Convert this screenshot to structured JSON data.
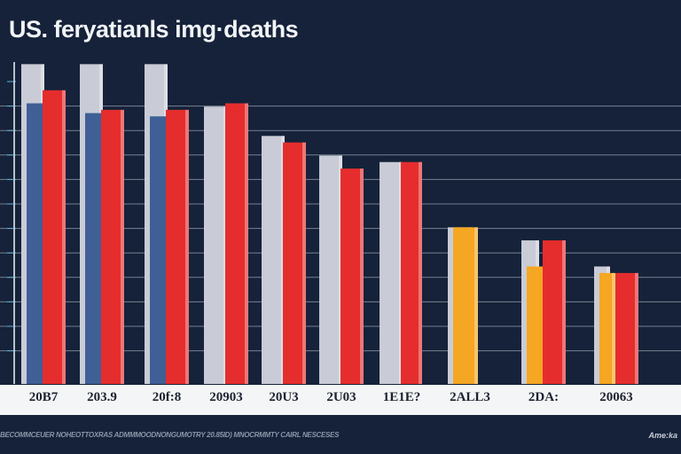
{
  "title": "US. feryatianls img·deaths",
  "caption": "BECOMMCEUER NOHEOTTOXRAS ADMMMOODNONGUMOTRY 20.85ID) MNOCRMMTY CAIRL NESCESES",
  "source": "Ame:ka",
  "colors": {
    "background": "#15223a",
    "grid": "#c8ccd4",
    "series_a": "#c9ccd6",
    "series_b_blue": "#3f5f96",
    "series_b_orange": "#f5a623",
    "series_c": "#e52d2d"
  },
  "chart_data": {
    "type": "bar",
    "title": "US. feryatianls img·deaths",
    "xlabel": "",
    "ylabel": "",
    "ylim": [
      0,
      100
    ],
    "grid": true,
    "legend": "none",
    "categories": [
      "20B7",
      "203.9",
      "20f:8",
      "20903",
      "20U3",
      "2U03",
      "1E1E?",
      "2ALL3",
      "2DA:",
      "20063"
    ],
    "series": [
      {
        "values": [
          98,
          98,
          98,
          85,
          76,
          70,
          68,
          48,
          44,
          36
        ],
        "color": "#c9ccd6"
      },
      {
        "values": [
          86,
          83,
          82,
          null,
          null,
          null,
          null,
          48,
          36,
          34
        ],
        "colors": [
          "#3f5f96",
          "#3f5f96",
          "#3f5f96",
          "#3f5f96",
          "#3f5f96",
          "#3f5f96",
          "#3f5f96",
          "#f5a623",
          "#f5a623",
          "#f5a623"
        ]
      },
      {
        "values": [
          90,
          84,
          84,
          86,
          74,
          66,
          68,
          null,
          44,
          34
        ],
        "color": "#e52d2d"
      }
    ]
  }
}
